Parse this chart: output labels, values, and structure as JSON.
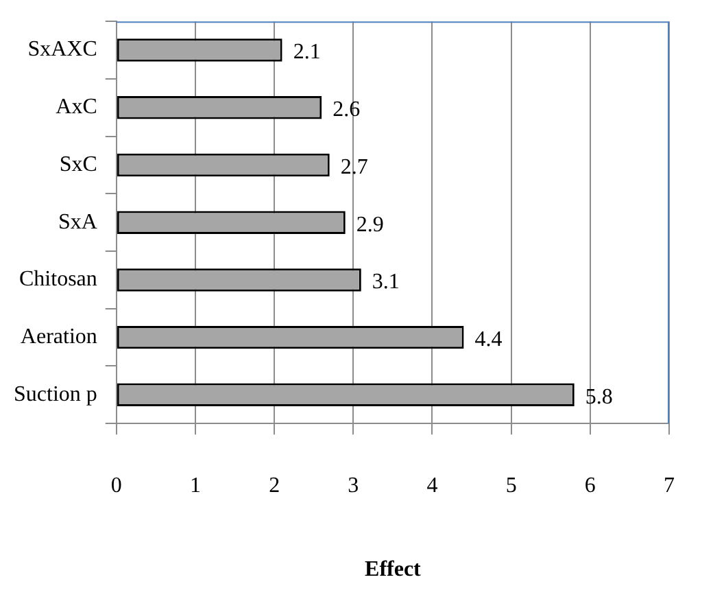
{
  "chart_data": {
    "type": "bar",
    "orientation": "horizontal",
    "categories": [
      "SxAXC",
      "AxC",
      "SxC",
      "SxA",
      "Chitosan",
      "Aeration",
      "Suction p"
    ],
    "values": [
      2.1,
      2.6,
      2.7,
      2.9,
      3.1,
      4.4,
      5.8
    ],
    "color": "#a6a6a6",
    "xlim": [
      0,
      7
    ],
    "xticks": [
      0,
      1,
      2,
      3,
      4,
      5,
      6,
      7
    ],
    "xlabel": "Effect",
    "grid": "x",
    "data_labels": true,
    "legend": false
  }
}
